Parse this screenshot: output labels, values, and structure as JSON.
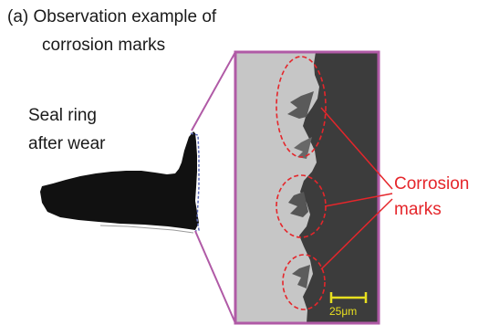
{
  "caption": {
    "line1": "(a) Observation example of",
    "line2": "corrosion marks"
  },
  "seal_label": {
    "line1": "Seal ring",
    "line2": "after wear"
  },
  "callout": {
    "line1": "Corrosion",
    "line2": "marks"
  },
  "scale_bar": {
    "label": "25μm"
  },
  "colors": {
    "frame": "#b05aa6",
    "annotation": "#e5262b",
    "scale_bar": "#e8e020",
    "seal": "#111111",
    "micrograph_light": "#c8c8c8",
    "micrograph_dark": "#3e3e3e"
  }
}
